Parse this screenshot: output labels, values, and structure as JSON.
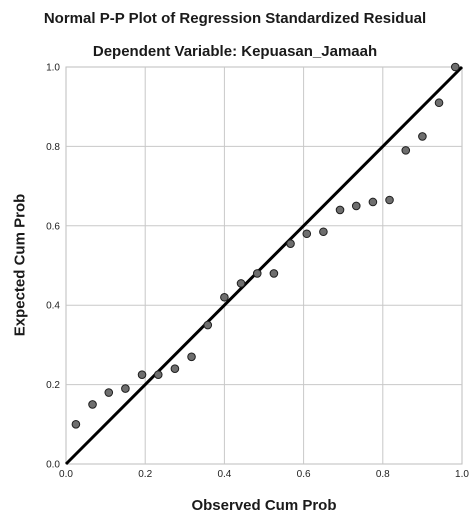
{
  "chart_data": {
    "type": "scatter",
    "title": "Normal P-P Plot of Regression Standardized Residual",
    "subtitle": "Dependent Variable: Kepuasan_Jamaah",
    "xlabel": "Observed Cum Prob",
    "ylabel": "Expected Cum Prob",
    "xlim": [
      0.0,
      1.0
    ],
    "ylim": [
      0.0,
      1.0
    ],
    "xticks": [
      "0.0",
      "0.2",
      "0.4",
      "0.6",
      "0.8",
      "1.0"
    ],
    "yticks": [
      "0.0",
      "0.2",
      "0.4",
      "0.6",
      "0.8",
      "1.0"
    ],
    "grid": true,
    "reference_line": [
      [
        0.0,
        0.0
      ],
      [
        1.0,
        1.0
      ]
    ],
    "points": [
      {
        "x": 0.025,
        "y": 0.1
      },
      {
        "x": 0.067,
        "y": 0.15
      },
      {
        "x": 0.108,
        "y": 0.18
      },
      {
        "x": 0.15,
        "y": 0.19
      },
      {
        "x": 0.192,
        "y": 0.225
      },
      {
        "x": 0.233,
        "y": 0.225
      },
      {
        "x": 0.275,
        "y": 0.24
      },
      {
        "x": 0.317,
        "y": 0.27
      },
      {
        "x": 0.358,
        "y": 0.35
      },
      {
        "x": 0.4,
        "y": 0.42
      },
      {
        "x": 0.442,
        "y": 0.455
      },
      {
        "x": 0.483,
        "y": 0.48
      },
      {
        "x": 0.525,
        "y": 0.48
      },
      {
        "x": 0.567,
        "y": 0.555
      },
      {
        "x": 0.608,
        "y": 0.58
      },
      {
        "x": 0.65,
        "y": 0.585
      },
      {
        "x": 0.692,
        "y": 0.64
      },
      {
        "x": 0.733,
        "y": 0.65
      },
      {
        "x": 0.775,
        "y": 0.66
      },
      {
        "x": 0.817,
        "y": 0.665
      },
      {
        "x": 0.858,
        "y": 0.79
      },
      {
        "x": 0.9,
        "y": 0.825
      },
      {
        "x": 0.942,
        "y": 0.91
      },
      {
        "x": 0.983,
        "y": 1.0
      }
    ],
    "colors": {
      "point_fill": "#6e6e6e",
      "point_stroke": "#1e1e1e",
      "line": "#000000",
      "grid": "#c8c8c8",
      "frame": "#bdbdbd"
    }
  }
}
